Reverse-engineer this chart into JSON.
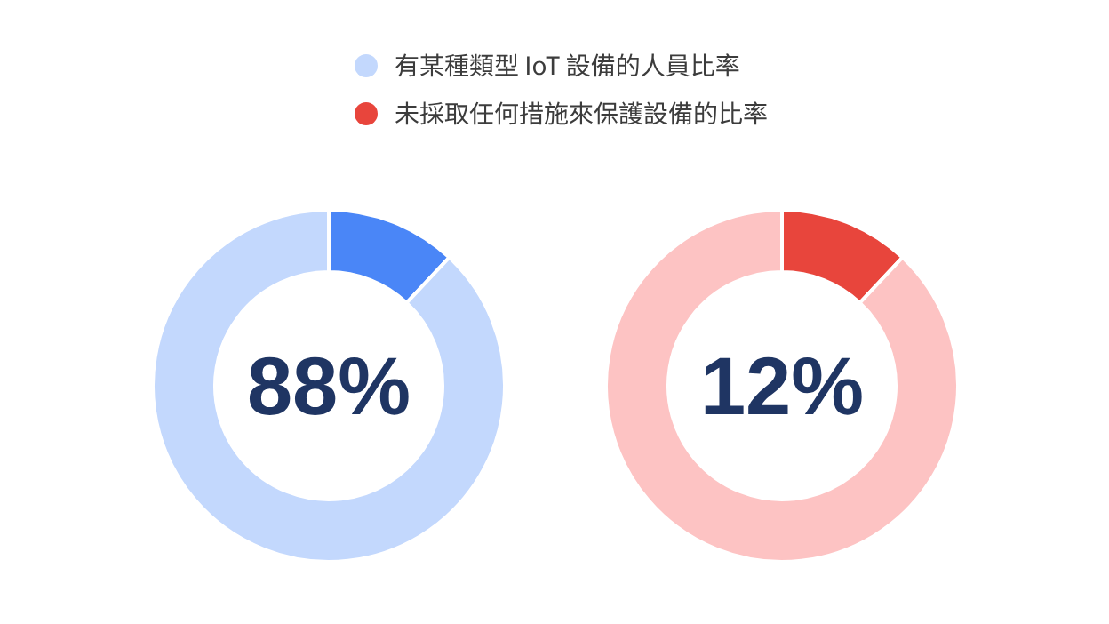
{
  "chart_data": [
    {
      "type": "donut",
      "categories": [
        null,
        "有某種類型 IoT 設備的人員比率"
      ],
      "values": [
        12,
        88
      ],
      "colors": [
        "#4a86f7",
        "#c3d8fd"
      ],
      "legend": "top",
      "annotations": [
        "88%"
      ]
    },
    {
      "type": "donut",
      "categories": [
        "未採取任何措施來保護設備的比率",
        null
      ],
      "values": [
        12,
        88
      ],
      "colors": [
        "#e8453c",
        "#fdc3c3"
      ],
      "legend": "top",
      "annotations": [
        "12%"
      ]
    }
  ]
}
